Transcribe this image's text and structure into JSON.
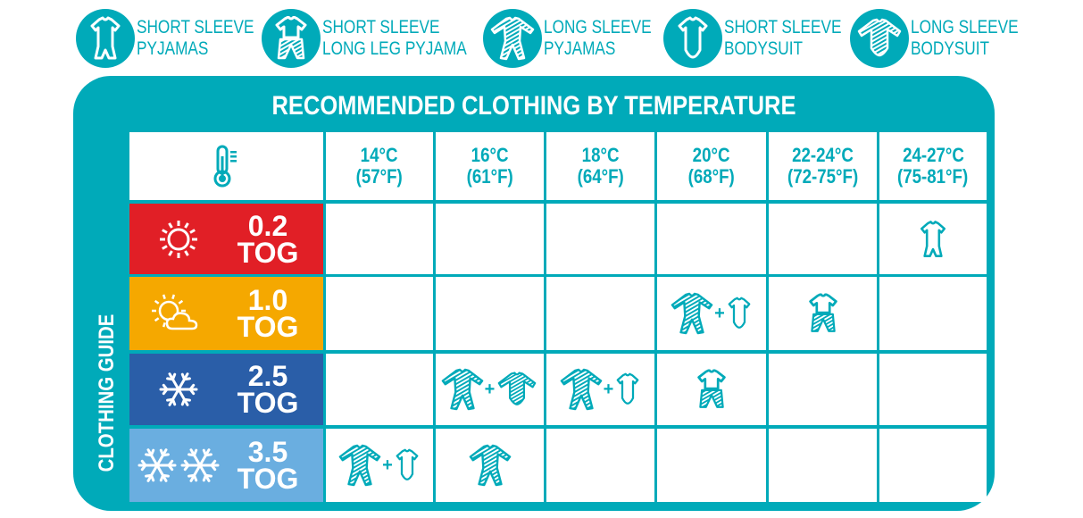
{
  "legend": [
    {
      "icon": "ss-pyjamas",
      "line1": "SHORT SLEEVE",
      "line2": "PYJAMAS"
    },
    {
      "icon": "ss-longleg",
      "line1": "SHORT SLEEVE",
      "line2": "LONG LEG PYJAMA"
    },
    {
      "icon": "ls-pyjamas",
      "line1": "LONG SLEEVE",
      "line2": "PYJAMAS"
    },
    {
      "icon": "ss-bodysuit",
      "line1": "SHORT SLEEVE",
      "line2": "BODYSUIT"
    },
    {
      "icon": "ls-bodysuit",
      "line1": "LONG SLEEVE",
      "line2": "BODYSUIT"
    }
  ],
  "title": "RECOMMENDED CLOTHING BY TEMPERATURE",
  "side_label": "CLOTHING GUIDE",
  "corner_icon": "thermometer-icon",
  "columns": [
    {
      "c": "14°C",
      "f": "(57°F)"
    },
    {
      "c": "16°C",
      "f": "(61°F)"
    },
    {
      "c": "18°C",
      "f": "(64°F)"
    },
    {
      "c": "20°C",
      "f": "(68°F)"
    },
    {
      "c": "22-24°C",
      "f": "(72-75°F)"
    },
    {
      "c": "24-27°C",
      "f": "(75-81°F)"
    }
  ],
  "rows": [
    {
      "value": "0.2",
      "unit": "TOG",
      "color": "#e11f26",
      "weather": "sun",
      "cells": [
        [],
        [],
        [],
        [],
        [],
        [
          "ss-pyjamas"
        ]
      ]
    },
    {
      "value": "1.0",
      "unit": "TOG",
      "color": "#f5a800",
      "weather": "sun-cloud",
      "cells": [
        [],
        [],
        [],
        [
          "ls-pyjamas",
          "ss-bodysuit"
        ],
        [
          "ss-longleg"
        ],
        []
      ]
    },
    {
      "value": "2.5",
      "unit": "TOG",
      "color": "#2a5ea8",
      "weather": "snowflake",
      "cells": [
        [],
        [
          "ls-pyjamas",
          "ls-bodysuit"
        ],
        [
          "ls-pyjamas",
          "ss-bodysuit"
        ],
        [
          "ss-longleg"
        ],
        [],
        []
      ]
    },
    {
      "value": "3.5",
      "unit": "TOG",
      "color": "#6aaee0",
      "weather": "two-snowflakes",
      "cells": [
        [
          "ls-pyjamas",
          "ss-bodysuit"
        ],
        [
          "ls-pyjamas"
        ],
        [],
        [],
        [],
        []
      ]
    }
  ],
  "plus_sign": "+",
  "colors": {
    "teal": "#00aab9"
  }
}
